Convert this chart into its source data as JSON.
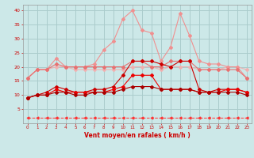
{
  "x": [
    0,
    1,
    2,
    3,
    4,
    5,
    6,
    7,
    8,
    9,
    10,
    11,
    12,
    13,
    14,
    15,
    16,
    17,
    18,
    19,
    20,
    21,
    22,
    23
  ],
  "line_gust_high": [
    16,
    19,
    19,
    23,
    20,
    20,
    20,
    21,
    26,
    29,
    37,
    40,
    33,
    32,
    22,
    27,
    39,
    31,
    22,
    21,
    21,
    20,
    20,
    16
  ],
  "line_gust_mid": [
    16,
    19,
    19,
    21,
    20,
    20,
    20,
    20,
    20,
    20,
    20,
    22,
    22,
    20,
    20,
    22,
    22,
    22,
    19,
    19,
    19,
    19,
    19,
    16
  ],
  "line_gust_low": [
    16,
    19,
    19,
    20,
    20,
    19,
    19,
    19,
    19,
    19,
    19,
    20,
    20,
    20,
    19,
    20,
    20,
    20,
    19,
    19,
    19,
    20,
    20,
    19
  ],
  "line_mean_high": [
    9,
    10,
    11,
    13,
    12,
    11,
    11,
    12,
    12,
    13,
    17,
    22,
    22,
    22,
    21,
    20,
    22,
    22,
    12,
    11,
    12,
    12,
    12,
    11
  ],
  "line_mean_mid": [
    9,
    10,
    10,
    12,
    11,
    11,
    11,
    11,
    11,
    12,
    13,
    17,
    17,
    17,
    12,
    12,
    12,
    12,
    11,
    11,
    11,
    12,
    12,
    11
  ],
  "line_mean_low": [
    9,
    10,
    10,
    11,
    11,
    10,
    10,
    11,
    11,
    11,
    12,
    13,
    13,
    13,
    12,
    12,
    12,
    12,
    11,
    11,
    11,
    11,
    11,
    10
  ],
  "line_dashed": [
    2,
    2,
    2,
    2,
    2,
    2,
    2,
    2,
    2,
    2,
    2,
    2,
    2,
    2,
    2,
    2,
    2,
    2,
    2,
    2,
    2,
    2,
    2,
    2
  ],
  "bg_color": "#cce8e8",
  "grid_color": "#aacccc",
  "xlabel": "Vent moyen/en rafales ( km/h )",
  "ylim": [
    0,
    42
  ],
  "xlim_min": -0.5,
  "xlim_max": 23.5,
  "yticks": [
    5,
    10,
    15,
    20,
    25,
    30,
    35,
    40
  ],
  "xticks": [
    0,
    1,
    2,
    3,
    4,
    5,
    6,
    7,
    8,
    9,
    10,
    11,
    12,
    13,
    14,
    15,
    16,
    17,
    18,
    19,
    20,
    21,
    22,
    23
  ],
  "color_light1": "#f09090",
  "color_light2": "#e87070",
  "color_light3": "#f0b0b0",
  "color_dark1": "#cc0000",
  "color_dark2": "#ee0000",
  "color_dark3": "#aa0000",
  "color_dashed": "#ff3333"
}
